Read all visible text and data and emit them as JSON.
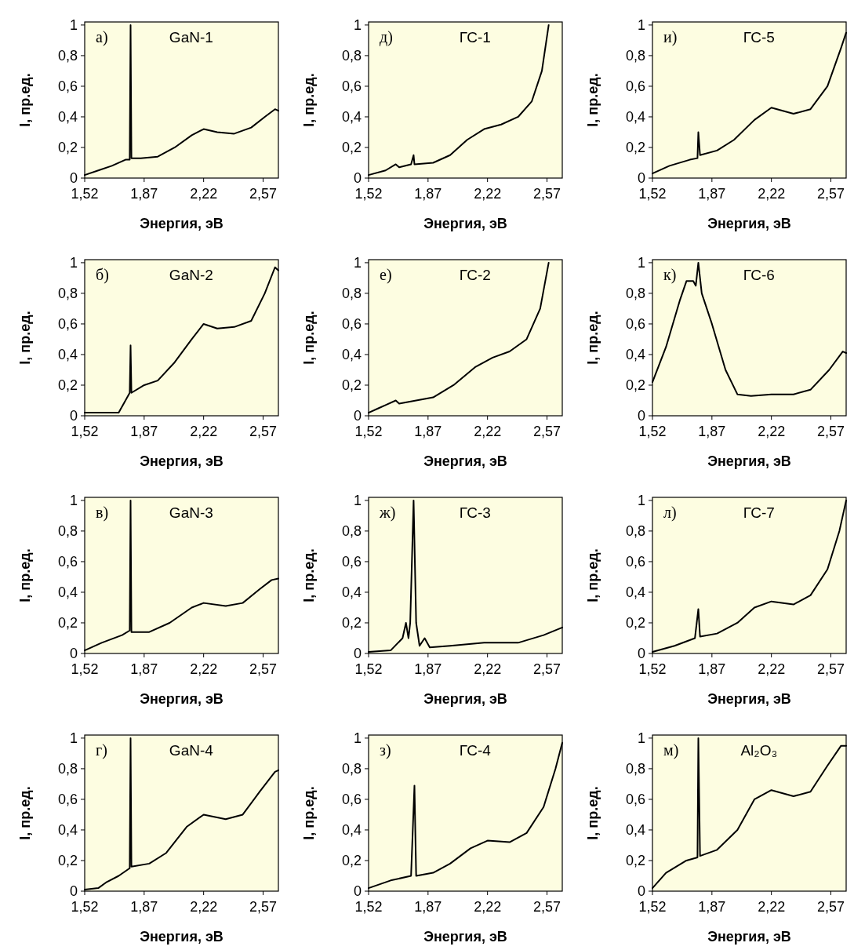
{
  "chart_data": [
    {
      "type": "line",
      "title": "GaN-1",
      "annotations": [
        "а)"
      ],
      "xlabel": "Энергия, эВ",
      "ylabel": "I, пр.ед.",
      "xlim": [
        1.52,
        2.66
      ],
      "ylim": [
        0,
        1.02
      ],
      "xticks": [
        {
          "value": 1.52,
          "label": "1,52"
        },
        {
          "value": 1.87,
          "label": "1,87"
        },
        {
          "value": 2.22,
          "label": "2,22"
        },
        {
          "value": 2.57,
          "label": "2,57"
        }
      ],
      "yticks": [
        {
          "value": 0,
          "label": "0"
        },
        {
          "value": 0.2,
          "label": "0,2"
        },
        {
          "value": 0.4,
          "label": "0,4"
        },
        {
          "value": 0.6,
          "label": "0,6"
        },
        {
          "value": 0.8,
          "label": "0,8"
        },
        {
          "value": 1,
          "label": "1"
        }
      ],
      "series": [
        {
          "color": "#000000",
          "x": [
            1.52,
            1.6,
            1.68,
            1.76,
            1.785,
            1.79,
            1.795,
            1.85,
            1.95,
            2.05,
            2.15,
            2.22,
            2.3,
            2.4,
            2.5,
            2.58,
            2.64,
            2.66
          ],
          "values": [
            0.02,
            0.05,
            0.08,
            0.12,
            0.12,
            1.0,
            0.13,
            0.13,
            0.14,
            0.2,
            0.28,
            0.32,
            0.3,
            0.29,
            0.33,
            0.4,
            0.45,
            0.44
          ]
        }
      ]
    },
    {
      "type": "line",
      "title": "ГС-1",
      "annotations": [
        "д)"
      ],
      "xlabel": "Энергия, эВ",
      "ylabel": "I, пр.ед.",
      "xlim": [
        1.52,
        2.66
      ],
      "ylim": [
        0,
        1.02
      ],
      "xticks": [
        {
          "value": 1.52,
          "label": "1,52"
        },
        {
          "value": 1.87,
          "label": "1,87"
        },
        {
          "value": 2.22,
          "label": "2,22"
        },
        {
          "value": 2.57,
          "label": "2,57"
        }
      ],
      "yticks": [
        {
          "value": 0,
          "label": "0"
        },
        {
          "value": 0.2,
          "label": "0,2"
        },
        {
          "value": 0.4,
          "label": "0,4"
        },
        {
          "value": 0.6,
          "label": "0,6"
        },
        {
          "value": 0.8,
          "label": "0,8"
        },
        {
          "value": 1,
          "label": "1"
        }
      ],
      "series": [
        {
          "color": "#000000",
          "x": [
            1.52,
            1.62,
            1.68,
            1.7,
            1.77,
            1.785,
            1.79,
            1.9,
            2.0,
            2.1,
            2.2,
            2.3,
            2.4,
            2.48,
            2.54,
            2.58
          ],
          "values": [
            0.02,
            0.05,
            0.09,
            0.07,
            0.09,
            0.15,
            0.09,
            0.1,
            0.15,
            0.25,
            0.32,
            0.35,
            0.4,
            0.5,
            0.7,
            1.0
          ]
        }
      ]
    },
    {
      "type": "line",
      "title": "ГС-5",
      "annotations": [
        "и)"
      ],
      "xlabel": "Энергия, эВ",
      "ylabel": "I, пр.ед.",
      "xlim": [
        1.52,
        2.66
      ],
      "ylim": [
        0,
        1.02
      ],
      "xticks": [
        {
          "value": 1.52,
          "label": "1,52"
        },
        {
          "value": 1.87,
          "label": "1,87"
        },
        {
          "value": 2.22,
          "label": "2,22"
        },
        {
          "value": 2.57,
          "label": "2,57"
        }
      ],
      "yticks": [
        {
          "value": 0,
          "label": "0"
        },
        {
          "value": 0.2,
          "label": "0,2"
        },
        {
          "value": 0.4,
          "label": "0,4"
        },
        {
          "value": 0.6,
          "label": "0,6"
        },
        {
          "value": 0.8,
          "label": "0,8"
        },
        {
          "value": 1,
          "label": "1"
        }
      ],
      "series": [
        {
          "color": "#000000",
          "x": [
            1.52,
            1.62,
            1.74,
            1.785,
            1.79,
            1.8,
            1.9,
            2.0,
            2.12,
            2.22,
            2.35,
            2.45,
            2.55,
            2.63,
            2.66
          ],
          "values": [
            0.03,
            0.08,
            0.12,
            0.13,
            0.3,
            0.15,
            0.18,
            0.25,
            0.38,
            0.46,
            0.42,
            0.45,
            0.6,
            0.85,
            0.95
          ]
        }
      ]
    },
    {
      "type": "line",
      "title": "GaN-2",
      "annotations": [
        "б)"
      ],
      "xlabel": "Энергия, эВ",
      "ylabel": "I, пр.ед.",
      "xlim": [
        1.52,
        2.66
      ],
      "ylim": [
        0,
        1.02
      ],
      "xticks": [
        {
          "value": 1.52,
          "label": "1,52"
        },
        {
          "value": 1.87,
          "label": "1,87"
        },
        {
          "value": 2.22,
          "label": "2,22"
        },
        {
          "value": 2.57,
          "label": "2,57"
        }
      ],
      "yticks": [
        {
          "value": 0,
          "label": "0"
        },
        {
          "value": 0.2,
          "label": "0,2"
        },
        {
          "value": 0.4,
          "label": "0,4"
        },
        {
          "value": 0.6,
          "label": "0,6"
        },
        {
          "value": 0.8,
          "label": "0,8"
        },
        {
          "value": 1,
          "label": "1"
        }
      ],
      "series": [
        {
          "color": "#000000",
          "x": [
            1.52,
            1.6,
            1.7,
            1.72,
            1.76,
            1.785,
            1.79,
            1.795,
            1.87,
            1.95,
            2.05,
            2.15,
            2.22,
            2.3,
            2.4,
            2.5,
            2.58,
            2.64,
            2.66
          ],
          "values": [
            0.02,
            0.02,
            0.02,
            0.02,
            0.1,
            0.15,
            0.46,
            0.15,
            0.2,
            0.23,
            0.35,
            0.5,
            0.6,
            0.57,
            0.58,
            0.62,
            0.8,
            0.97,
            0.95
          ]
        }
      ]
    },
    {
      "type": "line",
      "title": "ГС-2",
      "annotations": [
        "е)"
      ],
      "xlabel": "Энергия, эВ",
      "ylabel": "I, пр.ед.",
      "xlim": [
        1.52,
        2.66
      ],
      "ylim": [
        0,
        1.02
      ],
      "xticks": [
        {
          "value": 1.52,
          "label": "1,52"
        },
        {
          "value": 1.87,
          "label": "1,87"
        },
        {
          "value": 2.22,
          "label": "2,22"
        },
        {
          "value": 2.57,
          "label": "2,57"
        }
      ],
      "yticks": [
        {
          "value": 0,
          "label": "0"
        },
        {
          "value": 0.2,
          "label": "0,2"
        },
        {
          "value": 0.4,
          "label": "0,4"
        },
        {
          "value": 0.6,
          "label": "0,6"
        },
        {
          "value": 0.8,
          "label": "0,8"
        },
        {
          "value": 1,
          "label": "1"
        }
      ],
      "series": [
        {
          "color": "#000000",
          "x": [
            1.52,
            1.58,
            1.62,
            1.68,
            1.7,
            1.8,
            1.9,
            2.02,
            2.15,
            2.25,
            2.35,
            2.45,
            2.53,
            2.58
          ],
          "values": [
            0.02,
            0.05,
            0.07,
            0.1,
            0.08,
            0.1,
            0.12,
            0.2,
            0.32,
            0.38,
            0.42,
            0.5,
            0.7,
            1.0
          ]
        }
      ]
    },
    {
      "type": "line",
      "title": "ГС-6",
      "annotations": [
        "к)"
      ],
      "xlabel": "Энергия, эВ",
      "ylabel": "I, пр.ед.",
      "xlim": [
        1.52,
        2.66
      ],
      "ylim": [
        0,
        1.02
      ],
      "xticks": [
        {
          "value": 1.52,
          "label": "1,52"
        },
        {
          "value": 1.87,
          "label": "1,87"
        },
        {
          "value": 2.22,
          "label": "2,22"
        },
        {
          "value": 2.57,
          "label": "2,57"
        }
      ],
      "yticks": [
        {
          "value": 0,
          "label": "0"
        },
        {
          "value": 0.2,
          "label": "0,2"
        },
        {
          "value": 0.4,
          "label": "0,4"
        },
        {
          "value": 0.6,
          "label": "0,6"
        },
        {
          "value": 0.8,
          "label": "0,8"
        },
        {
          "value": 1,
          "label": "1"
        }
      ],
      "series": [
        {
          "color": "#000000",
          "x": [
            1.52,
            1.6,
            1.68,
            1.72,
            1.76,
            1.775,
            1.79,
            1.81,
            1.87,
            1.95,
            2.02,
            2.1,
            2.22,
            2.35,
            2.45,
            2.56,
            2.64,
            2.66
          ],
          "values": [
            0.22,
            0.45,
            0.75,
            0.88,
            0.88,
            0.85,
            1.0,
            0.8,
            0.6,
            0.3,
            0.14,
            0.13,
            0.14,
            0.14,
            0.17,
            0.3,
            0.42,
            0.41
          ]
        }
      ]
    },
    {
      "type": "line",
      "title": "GaN-3",
      "annotations": [
        "в)"
      ],
      "xlabel": "Энергия, эВ",
      "ylabel": "I, пр.ед.",
      "xlim": [
        1.52,
        2.66
      ],
      "ylim": [
        0,
        1.02
      ],
      "xticks": [
        {
          "value": 1.52,
          "label": "1,52"
        },
        {
          "value": 1.87,
          "label": "1,87"
        },
        {
          "value": 2.22,
          "label": "2,22"
        },
        {
          "value": 2.57,
          "label": "2,57"
        }
      ],
      "yticks": [
        {
          "value": 0,
          "label": "0"
        },
        {
          "value": 0.2,
          "label": "0,2"
        },
        {
          "value": 0.4,
          "label": "0,4"
        },
        {
          "value": 0.6,
          "label": "0,6"
        },
        {
          "value": 0.8,
          "label": "0,8"
        },
        {
          "value": 1,
          "label": "1"
        }
      ],
      "series": [
        {
          "color": "#000000",
          "x": [
            1.52,
            1.62,
            1.74,
            1.785,
            1.79,
            1.795,
            1.9,
            2.02,
            2.15,
            2.22,
            2.35,
            2.45,
            2.55,
            2.62,
            2.66
          ],
          "values": [
            0.02,
            0.07,
            0.12,
            0.15,
            1.0,
            0.14,
            0.14,
            0.2,
            0.3,
            0.33,
            0.31,
            0.33,
            0.42,
            0.48,
            0.49
          ]
        }
      ]
    },
    {
      "type": "line",
      "title": "ГС-3",
      "annotations": [
        "ж)"
      ],
      "xlabel": "Энергия, эВ",
      "ylabel": "I, пр.ед.",
      "xlim": [
        1.52,
        2.66
      ],
      "ylim": [
        0,
        1.02
      ],
      "xticks": [
        {
          "value": 1.52,
          "label": "1,52"
        },
        {
          "value": 1.87,
          "label": "1,87"
        },
        {
          "value": 2.22,
          "label": "2,22"
        },
        {
          "value": 2.57,
          "label": "2,57"
        }
      ],
      "yticks": [
        {
          "value": 0,
          "label": "0"
        },
        {
          "value": 0.2,
          "label": "0,2"
        },
        {
          "value": 0.4,
          "label": "0,4"
        },
        {
          "value": 0.6,
          "label": "0,6"
        },
        {
          "value": 0.8,
          "label": "0,8"
        },
        {
          "value": 1,
          "label": "1"
        }
      ],
      "series": [
        {
          "color": "#000000",
          "x": [
            1.52,
            1.65,
            1.72,
            1.74,
            1.755,
            1.765,
            1.785,
            1.8,
            1.82,
            1.85,
            1.88,
            2.0,
            2.2,
            2.4,
            2.55,
            2.66
          ],
          "values": [
            0.01,
            0.02,
            0.1,
            0.2,
            0.1,
            0.2,
            1.0,
            0.2,
            0.05,
            0.1,
            0.04,
            0.05,
            0.07,
            0.07,
            0.12,
            0.17
          ]
        }
      ]
    },
    {
      "type": "line",
      "title": "ГС-7",
      "annotations": [
        "л)"
      ],
      "xlabel": "Энергия, эВ",
      "ylabel": "I, пр.ед.",
      "xlim": [
        1.52,
        2.66
      ],
      "ylim": [
        0,
        1.02
      ],
      "xticks": [
        {
          "value": 1.52,
          "label": "1,52"
        },
        {
          "value": 1.87,
          "label": "1,87"
        },
        {
          "value": 2.22,
          "label": "2,22"
        },
        {
          "value": 2.57,
          "label": "2,57"
        }
      ],
      "yticks": [
        {
          "value": 0,
          "label": "0"
        },
        {
          "value": 0.2,
          "label": "0,2"
        },
        {
          "value": 0.4,
          "label": "0,4"
        },
        {
          "value": 0.6,
          "label": "0,6"
        },
        {
          "value": 0.8,
          "label": "0,8"
        },
        {
          "value": 1,
          "label": "1"
        }
      ],
      "series": [
        {
          "color": "#000000",
          "x": [
            1.52,
            1.65,
            1.77,
            1.79,
            1.8,
            1.9,
            2.02,
            2.12,
            2.22,
            2.35,
            2.45,
            2.55,
            2.62,
            2.66
          ],
          "values": [
            0.01,
            0.05,
            0.1,
            0.29,
            0.11,
            0.13,
            0.2,
            0.3,
            0.34,
            0.32,
            0.38,
            0.55,
            0.8,
            1.0
          ]
        }
      ]
    },
    {
      "type": "line",
      "title": "GaN-4",
      "annotations": [
        "г)"
      ],
      "xlabel": "Энергия, эВ",
      "ylabel": "I, пр.ед.",
      "xlim": [
        1.52,
        2.66
      ],
      "ylim": [
        0,
        1.02
      ],
      "xticks": [
        {
          "value": 1.52,
          "label": "1,52"
        },
        {
          "value": 1.87,
          "label": "1,87"
        },
        {
          "value": 2.22,
          "label": "2,22"
        },
        {
          "value": 2.57,
          "label": "2,57"
        }
      ],
      "yticks": [
        {
          "value": 0,
          "label": "0"
        },
        {
          "value": 0.2,
          "label": "0,2"
        },
        {
          "value": 0.4,
          "label": "0,4"
        },
        {
          "value": 0.6,
          "label": "0,6"
        },
        {
          "value": 0.8,
          "label": "0,8"
        },
        {
          "value": 1,
          "label": "1"
        }
      ],
      "series": [
        {
          "color": "#000000",
          "x": [
            1.52,
            1.6,
            1.65,
            1.72,
            1.785,
            1.79,
            1.795,
            1.9,
            2.0,
            2.12,
            2.22,
            2.35,
            2.45,
            2.55,
            2.64,
            2.66
          ],
          "values": [
            0.01,
            0.02,
            0.06,
            0.1,
            0.15,
            1.0,
            0.16,
            0.18,
            0.25,
            0.42,
            0.5,
            0.47,
            0.5,
            0.65,
            0.78,
            0.79
          ]
        }
      ]
    },
    {
      "type": "line",
      "title": "ГС-4",
      "annotations": [
        "з)"
      ],
      "xlabel": "Энергия, эВ",
      "ylabel": "I, пр.ед.",
      "xlim": [
        1.52,
        2.66
      ],
      "ylim": [
        0,
        1.02
      ],
      "xticks": [
        {
          "value": 1.52,
          "label": "1,52"
        },
        {
          "value": 1.87,
          "label": "1,87"
        },
        {
          "value": 2.22,
          "label": "2,22"
        },
        {
          "value": 2.57,
          "label": "2,57"
        }
      ],
      "yticks": [
        {
          "value": 0,
          "label": "0"
        },
        {
          "value": 0.2,
          "label": "0,2"
        },
        {
          "value": 0.4,
          "label": "0,4"
        },
        {
          "value": 0.6,
          "label": "0,6"
        },
        {
          "value": 0.8,
          "label": "0,8"
        },
        {
          "value": 1,
          "label": "1"
        }
      ],
      "series": [
        {
          "color": "#000000",
          "x": [
            1.52,
            1.65,
            1.77,
            1.79,
            1.8,
            1.9,
            2.0,
            2.12,
            2.22,
            2.35,
            2.45,
            2.55,
            2.62,
            2.66
          ],
          "values": [
            0.02,
            0.07,
            0.1,
            0.69,
            0.1,
            0.12,
            0.18,
            0.28,
            0.33,
            0.32,
            0.38,
            0.55,
            0.8,
            0.97
          ]
        }
      ]
    },
    {
      "type": "line",
      "title": "Al₂O₃",
      "annotations": [
        "м)"
      ],
      "xlabel": "Энергия, эВ",
      "ylabel": "I, пр.ед.",
      "xlim": [
        1.52,
        2.66
      ],
      "ylim": [
        0,
        1.02
      ],
      "xticks": [
        {
          "value": 1.52,
          "label": "1,52"
        },
        {
          "value": 1.87,
          "label": "1,87"
        },
        {
          "value": 2.22,
          "label": "2,22"
        },
        {
          "value": 2.57,
          "label": "2,57"
        }
      ],
      "yticks": [
        {
          "value": 0,
          "label": "0"
        },
        {
          "value": 0.2,
          "label": "0,2"
        },
        {
          "value": 0.4,
          "label": "0,4"
        },
        {
          "value": 0.6,
          "label": "0,6"
        },
        {
          "value": 0.8,
          "label": "0,8"
        },
        {
          "value": 1,
          "label": "1"
        }
      ],
      "series": [
        {
          "color": "#000000",
          "x": [
            1.52,
            1.6,
            1.72,
            1.785,
            1.79,
            1.8,
            1.9,
            2.02,
            2.12,
            2.22,
            2.35,
            2.45,
            2.55,
            2.63,
            2.66
          ],
          "values": [
            0.02,
            0.12,
            0.2,
            0.22,
            1.0,
            0.23,
            0.27,
            0.4,
            0.6,
            0.66,
            0.62,
            0.65,
            0.82,
            0.95,
            0.95
          ]
        }
      ]
    }
  ]
}
